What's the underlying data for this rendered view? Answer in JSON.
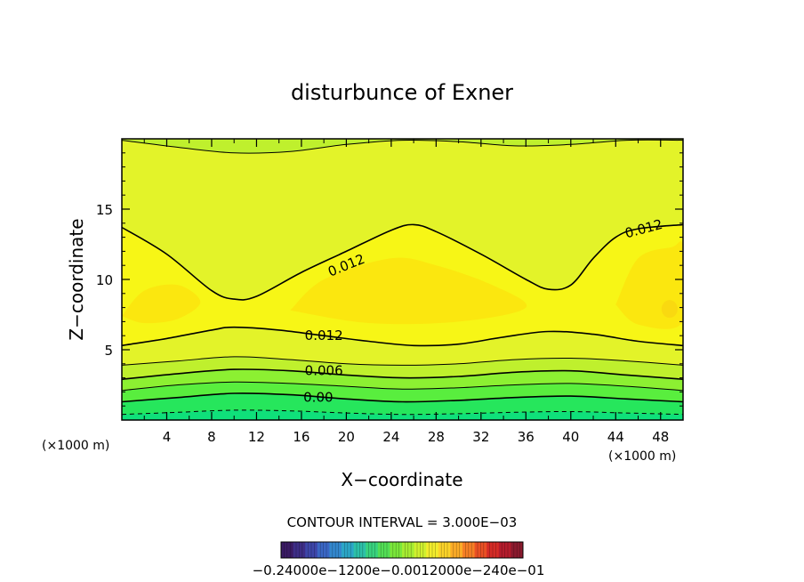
{
  "chart_data": {
    "type": "heatmap",
    "title": "disturbunce of Exner",
    "xlabel": "X−coordinate",
    "ylabel": "Z−coordinate",
    "x_unit_left": "(×1000 m)",
    "x_unit_right": "(×1000 m)",
    "xlim": [
      0,
      50
    ],
    "ylim": [
      0,
      20
    ],
    "x_ticks": [
      4,
      8,
      12,
      16,
      20,
      24,
      28,
      32,
      36,
      40,
      44,
      48
    ],
    "y_ticks": [
      5,
      10,
      15
    ],
    "contour_interval_text": "CONTOUR INTERVAL = 3.000E−03",
    "contour_labels": [
      {
        "text": "0.012",
        "x": 20,
        "y": 11
      },
      {
        "text": "0.012",
        "x": 46.5,
        "y": 13.6
      },
      {
        "text": "0.012",
        "x": 18,
        "y": 6
      },
      {
        "text": "0.006",
        "x": 18,
        "y": 3.5
      },
      {
        "text": "0.00",
        "x": 17.5,
        "y": 1.6
      }
    ],
    "contours": [
      {
        "level": 0.012,
        "points": [
          [
            0,
            13.7
          ],
          [
            4,
            11.8
          ],
          [
            8,
            9.2
          ],
          [
            10,
            8.6
          ],
          [
            12,
            8.8
          ],
          [
            16,
            10.5
          ],
          [
            20,
            12
          ],
          [
            24,
            13.5
          ],
          [
            26,
            13.9
          ],
          [
            28,
            13.4
          ],
          [
            32,
            11.8
          ],
          [
            36,
            10
          ],
          [
            38,
            9.3
          ],
          [
            40,
            9.6
          ],
          [
            42,
            11.5
          ],
          [
            44,
            13
          ],
          [
            46,
            13.6
          ],
          [
            50,
            13.9
          ]
        ]
      },
      {
        "level": 0.012,
        "points": [
          [
            0,
            5.3
          ],
          [
            4,
            5.8
          ],
          [
            8,
            6.4
          ],
          [
            10,
            6.6
          ],
          [
            14,
            6.4
          ],
          [
            18,
            6
          ],
          [
            22,
            5.6
          ],
          [
            26,
            5.3
          ],
          [
            30,
            5.4
          ],
          [
            34,
            5.9
          ],
          [
            38,
            6.3
          ],
          [
            42,
            6.1
          ],
          [
            46,
            5.6
          ],
          [
            50,
            5.3
          ]
        ]
      },
      {
        "level": 0.009,
        "points": [
          [
            0,
            3.9
          ],
          [
            5,
            4.2
          ],
          [
            10,
            4.5
          ],
          [
            15,
            4.3
          ],
          [
            20,
            4
          ],
          [
            25,
            3.9
          ],
          [
            30,
            4
          ],
          [
            35,
            4.3
          ],
          [
            40,
            4.4
          ],
          [
            45,
            4.2
          ],
          [
            50,
            3.9
          ]
        ]
      },
      {
        "level": 0.006,
        "points": [
          [
            0,
            2.9
          ],
          [
            5,
            3.3
          ],
          [
            10,
            3.6
          ],
          [
            15,
            3.5
          ],
          [
            20,
            3.2
          ],
          [
            25,
            3
          ],
          [
            30,
            3.1
          ],
          [
            35,
            3.4
          ],
          [
            40,
            3.5
          ],
          [
            45,
            3.2
          ],
          [
            50,
            2.9
          ]
        ]
      },
      {
        "level": 0.003,
        "points": [
          [
            0,
            2.1
          ],
          [
            5,
            2.5
          ],
          [
            10,
            2.7
          ],
          [
            15,
            2.6
          ],
          [
            20,
            2.4
          ],
          [
            25,
            2.2
          ],
          [
            30,
            2.3
          ],
          [
            35,
            2.5
          ],
          [
            40,
            2.6
          ],
          [
            45,
            2.4
          ],
          [
            50,
            2.1
          ]
        ]
      },
      {
        "level": 0.0,
        "points": [
          [
            0,
            1.3
          ],
          [
            5,
            1.6
          ],
          [
            10,
            1.9
          ],
          [
            15,
            1.8
          ],
          [
            20,
            1.5
          ],
          [
            25,
            1.3
          ],
          [
            30,
            1.4
          ],
          [
            35,
            1.6
          ],
          [
            40,
            1.7
          ],
          [
            45,
            1.5
          ],
          [
            50,
            1.3
          ]
        ]
      },
      {
        "level": -0.003,
        "dashed": true,
        "points": [
          [
            0,
            0.4
          ],
          [
            5,
            0.55
          ],
          [
            10,
            0.7
          ],
          [
            15,
            0.65
          ],
          [
            20,
            0.5
          ],
          [
            25,
            0.4
          ],
          [
            30,
            0.45
          ],
          [
            35,
            0.55
          ],
          [
            40,
            0.6
          ],
          [
            45,
            0.5
          ],
          [
            50,
            0.4
          ]
        ]
      },
      {
        "level": 0.015,
        "points": [
          [
            0,
            19.9
          ],
          [
            5,
            19.4
          ],
          [
            10,
            19
          ],
          [
            15,
            19.1
          ],
          [
            20,
            19.6
          ],
          [
            25,
            19.9
          ],
          [
            30,
            19.8
          ],
          [
            35,
            19.5
          ],
          [
            40,
            19.6
          ],
          [
            45,
            19.9
          ],
          [
            50,
            19.9
          ]
        ]
      }
    ],
    "colorbar": {
      "labels_text": "−0.24000e−1200e−0.0012000e−240e−01",
      "colors": [
        "#3a1a63",
        "#3d2d86",
        "#3d45a8",
        "#3a66c4",
        "#3387cd",
        "#2ba6c7",
        "#2cc0a8",
        "#38d27e",
        "#52de55",
        "#7ae63a",
        "#a6ec32",
        "#cff02f",
        "#f2ec2c",
        "#fbd329",
        "#fbab27",
        "#f57f25",
        "#e95024",
        "#d42b26",
        "#b41b2c",
        "#8a1a2e"
      ]
    },
    "colors": {
      "band_neg": "#0fe07a",
      "band_0": "#26e65c",
      "band_1": "#59ee3e",
      "band_2": "#8cf032",
      "band_3": "#bff02d",
      "band_4": "#e3f329",
      "band_5": "#f7f616",
      "band_6": "#fbe70f",
      "band_7": "#f9d910"
    }
  }
}
